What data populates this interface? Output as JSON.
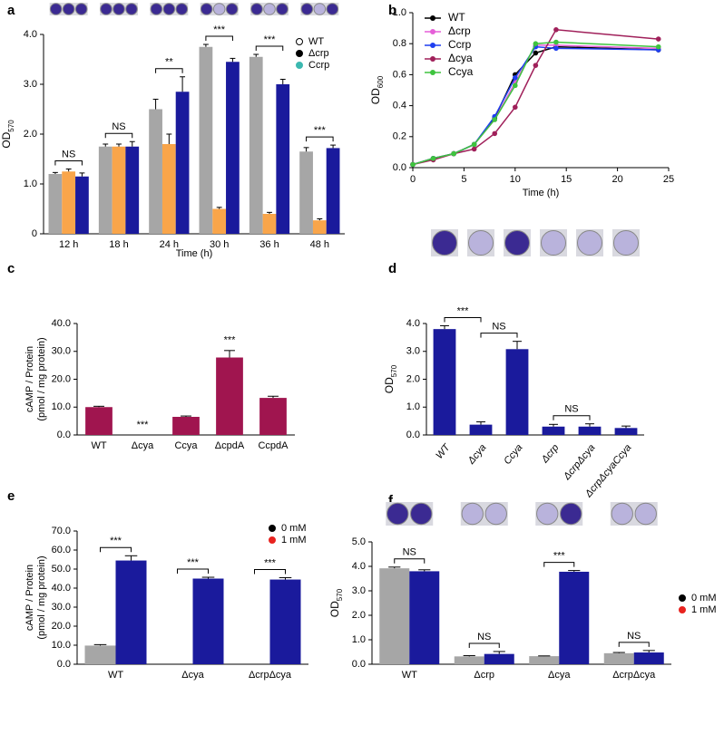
{
  "chart_data": [
    {
      "type": "bar",
      "panel": "a",
      "xlabel": "Time (h)",
      "ylabel": "OD",
      "ylabel_sub": "570",
      "categories": [
        "12 h",
        "18 h",
        "24 h",
        "30 h",
        "36 h",
        "48 h"
      ],
      "series": [
        {
          "name": "WT",
          "color": "#a6a6a6",
          "marker_color": "#ffffff",
          "values": [
            1.2,
            1.75,
            2.5,
            3.75,
            3.55,
            1.65
          ],
          "errors": [
            0.03,
            0.05,
            0.2,
            0.05,
            0.05,
            0.08
          ]
        },
        {
          "name": "Δcrp",
          "color": "#f9a54a",
          "marker_color": "#000000",
          "values": [
            1.25,
            1.75,
            1.8,
            0.5,
            0.4,
            0.27
          ],
          "errors": [
            0.05,
            0.05,
            0.2,
            0.03,
            0.03,
            0.03
          ]
        },
        {
          "name": "Ccrp",
          "color": "#1a1a9c",
          "marker_color": "#3cb8b0",
          "values": [
            1.15,
            1.75,
            2.85,
            3.45,
            3.0,
            1.72
          ],
          "errors": [
            0.07,
            0.1,
            0.3,
            0.07,
            0.1,
            0.06
          ]
        }
      ],
      "annotations": [
        "NS",
        "NS",
        "**",
        "***",
        "***",
        "***"
      ],
      "ylim": [
        0,
        4
      ],
      "yticks": [
        0,
        {
          "value": 1,
          "label": "1.0"
        },
        {
          "value": 2,
          "label": "2.0"
        },
        {
          "value": 3,
          "label": "3.0"
        },
        {
          "value": 4,
          "label": "4.0"
        }
      ]
    },
    {
      "type": "line",
      "panel": "b",
      "xlabel": "Time (h)",
      "ylabel": "OD",
      "ylabel_sub": "600",
      "x": [
        0,
        2,
        4,
        6,
        8,
        10,
        12,
        14,
        24
      ],
      "series": [
        {
          "name": "WT",
          "color": "#000000",
          "values": [
            0.02,
            0.06,
            0.09,
            0.15,
            0.32,
            0.6,
            0.74,
            0.78,
            0.76
          ]
        },
        {
          "name": "Δcrp",
          "color": "#e55fd8",
          "values": [
            0.02,
            0.06,
            0.09,
            0.15,
            0.31,
            0.55,
            0.79,
            0.79,
            0.77
          ]
        },
        {
          "name": "Ccrp",
          "color": "#1f3ff0",
          "values": [
            0.02,
            0.06,
            0.09,
            0.15,
            0.33,
            0.58,
            0.78,
            0.77,
            0.76
          ]
        },
        {
          "name": "Δcya",
          "color": "#a0205a",
          "values": [
            0.02,
            0.05,
            0.09,
            0.12,
            0.22,
            0.39,
            0.66,
            0.89,
            0.83
          ]
        },
        {
          "name": "Ccya",
          "color": "#3ec43e",
          "values": [
            0.02,
            0.06,
            0.09,
            0.15,
            0.31,
            0.53,
            0.8,
            0.81,
            0.78
          ]
        }
      ],
      "xlim": [
        0,
        25
      ],
      "xticks": [
        0,
        5,
        10,
        15,
        20,
        25
      ],
      "ylim": [
        0,
        1
      ],
      "yticks": [
        {
          "value": 0,
          "label": "0.0"
        },
        0.2,
        0.4,
        0.6,
        0.8,
        {
          "value": 1,
          "label": "1.0"
        }
      ]
    },
    {
      "type": "bar",
      "panel": "c",
      "ylabel": [
        "cAMP / Protein",
        "(pmol / mg protein)"
      ],
      "categories": [
        "WT",
        "Δcya",
        "Ccya",
        "ΔcpdA",
        "CcpdA"
      ],
      "series": [
        {
          "color": "#a0154f",
          "values": [
            10,
            0,
            6.5,
            27.8,
            13.3
          ],
          "errors": [
            0.3,
            0,
            0.3,
            2.5,
            0.6
          ]
        }
      ],
      "annotations": [
        "***",
        "***"
      ],
      "ylim": [
        0,
        40
      ],
      "yticks": [
        {
          "value": 0,
          "label": "0.0"
        },
        {
          "value": 10,
          "label": "10.0"
        },
        {
          "value": 20,
          "label": "20.0"
        },
        {
          "value": 30,
          "label": "30.0"
        },
        {
          "value": 40,
          "label": "40.0"
        }
      ]
    },
    {
      "type": "bar",
      "panel": "d",
      "ylabel": "OD",
      "ylabel_sub": "570",
      "categories": [
        "WT",
        "Δcya",
        "Ccya",
        "Δcrp",
        "ΔcrpΔcya",
        "ΔcrpΔcyaCcya"
      ],
      "series": [
        {
          "color": "#1a1a9c",
          "values": [
            3.8,
            0.37,
            3.08,
            0.3,
            0.3,
            0.25
          ],
          "errors": [
            0.12,
            0.1,
            0.28,
            0.08,
            0.1,
            0.07
          ]
        }
      ],
      "annotations": [
        "***",
        "NS",
        "NS"
      ],
      "ylim": [
        0,
        4
      ],
      "yticks": [
        {
          "value": 0,
          "label": "0.0"
        },
        {
          "value": 1,
          "label": "1.0"
        },
        {
          "value": 2,
          "label": "2.0"
        },
        {
          "value": 3,
          "label": "3.0"
        },
        {
          "value": 4,
          "label": "4.0"
        }
      ]
    },
    {
      "type": "bar",
      "panel": "e",
      "ylabel": [
        "cAMP / Protein",
        "(pmol / mg protein)"
      ],
      "categories": [
        "WT",
        "Δcya",
        "ΔcrpΔcya"
      ],
      "series": [
        {
          "name": "0 mM",
          "color": "#a6a6a6",
          "marker_color": "#000000",
          "values": [
            9.8,
            0,
            0
          ],
          "errors": [
            0.5,
            0,
            0
          ]
        },
        {
          "name": "1 mM",
          "color": "#1a1a9c",
          "marker_color": "#e8231f",
          "values": [
            54.5,
            45,
            44.5
          ],
          "errors": [
            2.5,
            0.7,
            1
          ]
        }
      ],
      "annotations": [
        "***",
        "***",
        "***"
      ],
      "ylim": [
        0,
        70
      ],
      "yticks": [
        {
          "value": 0,
          "label": "0.0"
        },
        {
          "value": 10,
          "label": "10.0"
        },
        {
          "value": 20,
          "label": "20.0"
        },
        {
          "value": 30,
          "label": "30.0"
        },
        {
          "value": 40,
          "label": "40.0"
        },
        {
          "value": 50,
          "label": "50.0"
        },
        {
          "value": 60,
          "label": "60.0"
        },
        {
          "value": 70,
          "label": "70.0"
        }
      ]
    },
    {
      "type": "bar",
      "panel": "f",
      "ylabel": "OD",
      "ylabel_sub": "570",
      "categories": [
        "WT",
        "Δcrp",
        "Δcya",
        "ΔcrpΔcya"
      ],
      "series": [
        {
          "name": "0 mM",
          "color": "#a6a6a6",
          "marker_color": "#000000",
          "values": [
            3.92,
            0.32,
            0.33,
            0.45
          ],
          "errors": [
            0.05,
            0.03,
            0.01,
            0.03
          ]
        },
        {
          "name": "1 mM",
          "color": "#1a1a9c",
          "marker_color": "#e8231f",
          "values": [
            3.8,
            0.42,
            3.78,
            0.48
          ],
          "errors": [
            0.06,
            0.1,
            0.05,
            0.08
          ]
        }
      ],
      "annotations": [
        "NS",
        "NS",
        "***",
        "NS"
      ],
      "ylim": [
        0,
        5
      ],
      "yticks": [
        {
          "value": 0,
          "label": "0.0"
        },
        {
          "value": 1,
          "label": "1.0"
        },
        {
          "value": 2,
          "label": "2.0"
        },
        {
          "value": 3,
          "label": "3.0"
        },
        {
          "value": 4,
          "label": "4.0"
        },
        {
          "value": 5,
          "label": "5.0"
        }
      ]
    }
  ]
}
